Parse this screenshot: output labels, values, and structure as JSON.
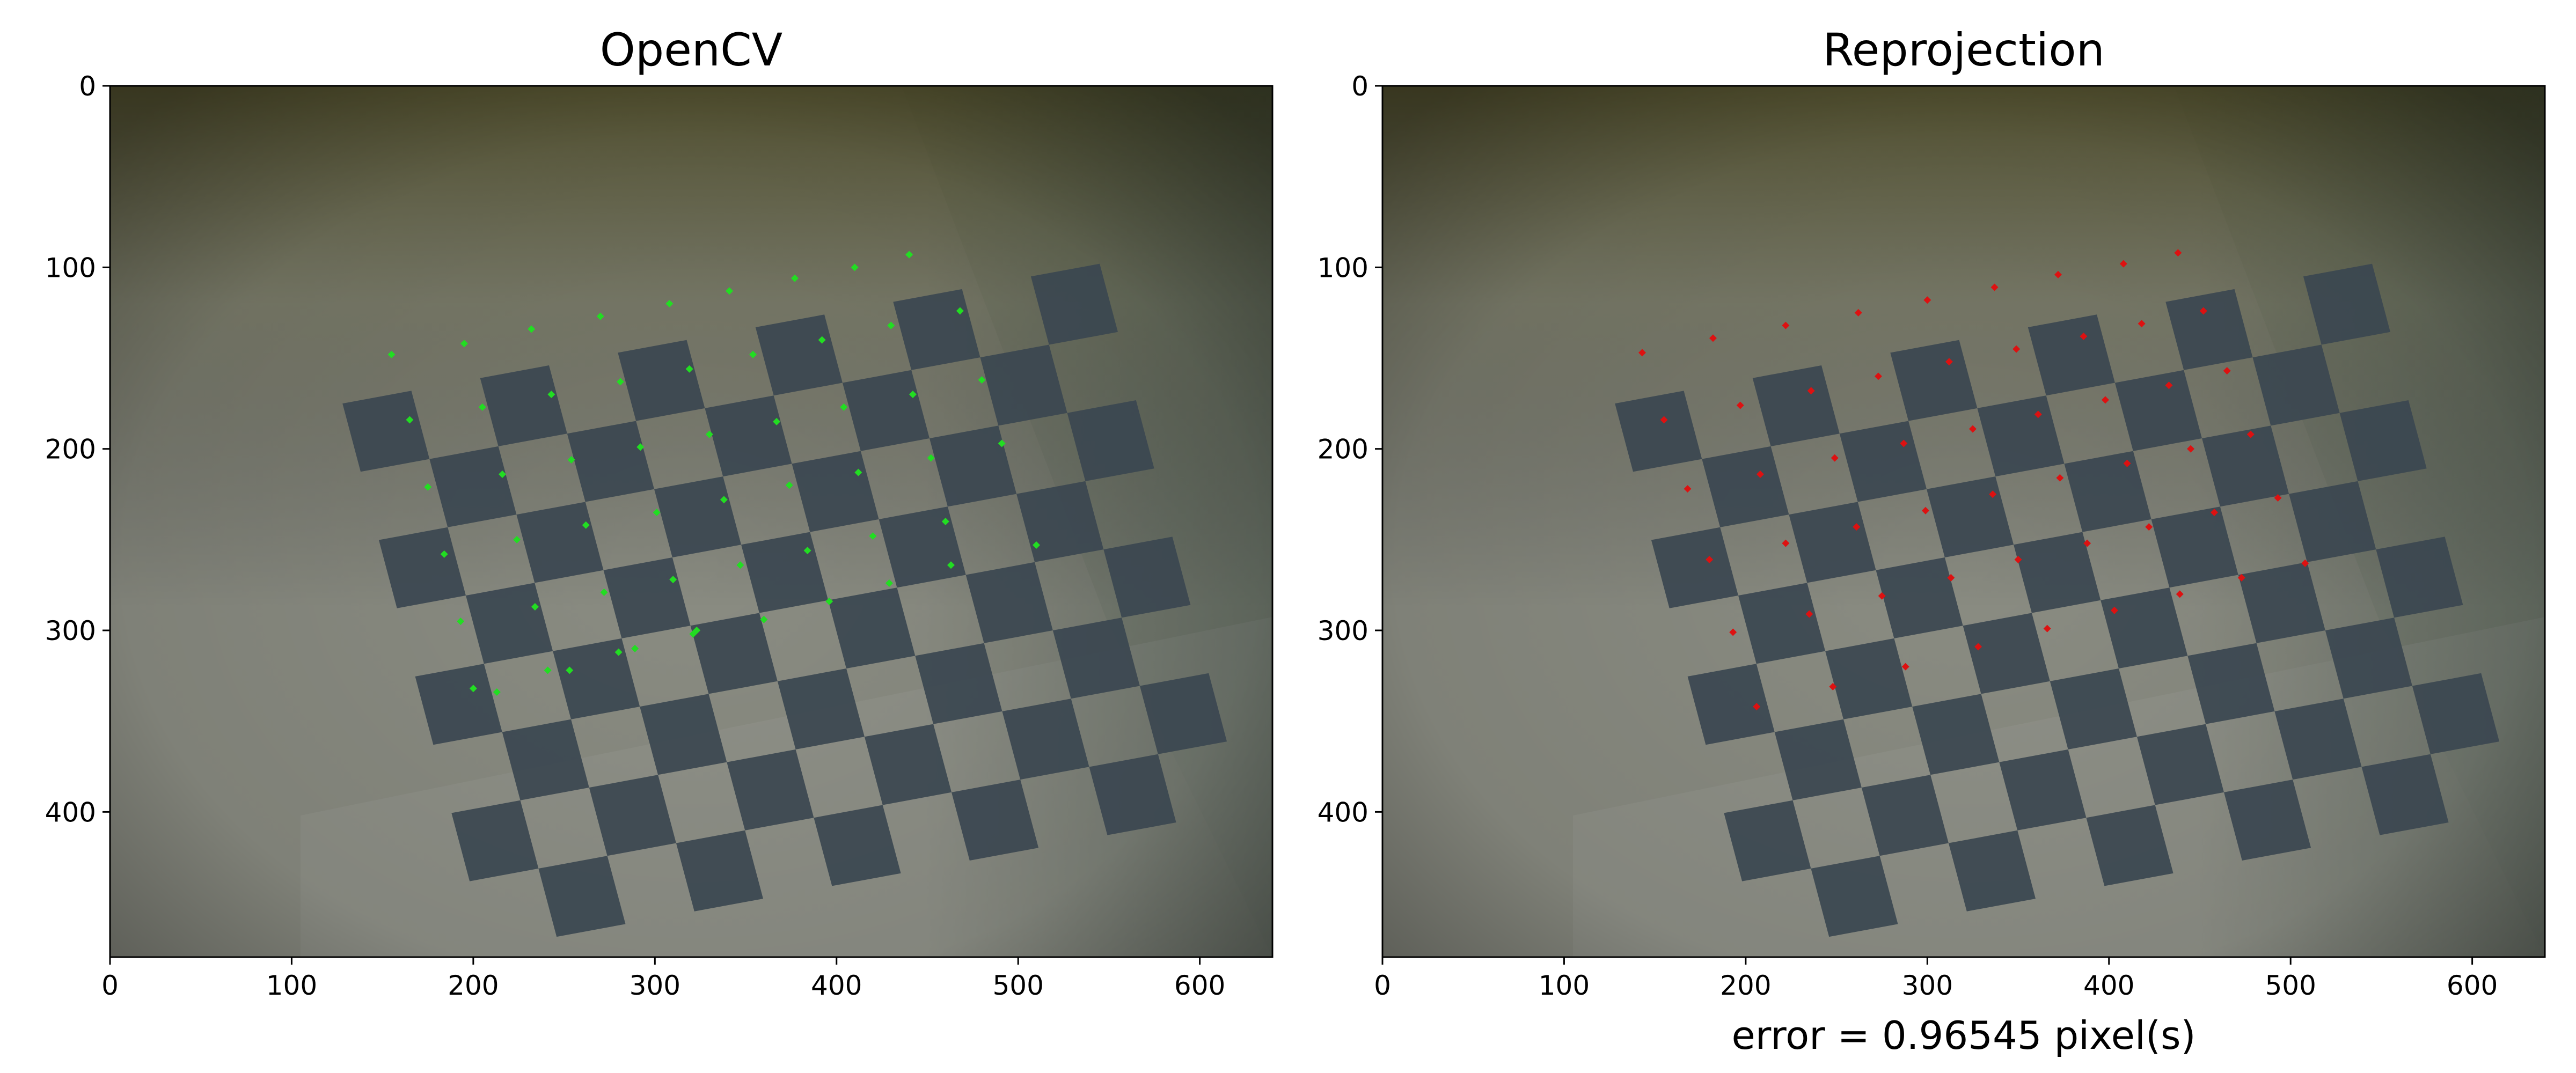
{
  "chart_data": [
    {
      "type": "scatter",
      "title": "OpenCV",
      "xlabel": "",
      "ylabel": "",
      "xlim": [
        0,
        640
      ],
      "ylim": [
        480,
        0
      ],
      "y_inverted": true,
      "x_ticks": [
        0,
        100,
        200,
        300,
        400,
        500,
        600
      ],
      "y_ticks": [
        0,
        100,
        200,
        300,
        400
      ],
      "grid": false,
      "marker_color": "#22dd22",
      "background": "camera image of a tilted checkerboard calibration target on a desk",
      "series": [
        {
          "x": [
            155,
            195,
            232,
            270,
            308,
            341,
            377,
            410,
            440,
            165,
            205,
            243,
            281,
            319,
            354,
            392,
            430,
            468,
            175,
            216,
            254,
            292,
            330,
            367,
            404,
            442,
            480,
            184,
            224,
            262,
            301,
            338,
            374,
            412,
            452,
            491,
            193,
            234,
            272,
            310,
            347,
            384,
            420,
            460,
            510,
            200,
            241,
            280,
            321,
            360,
            396,
            429,
            463,
            213,
            253,
            289,
            323
          ],
          "y": [
            148,
            142,
            134,
            127,
            120,
            113,
            106,
            100,
            93,
            184,
            177,
            170,
            163,
            156,
            148,
            140,
            132,
            124,
            221,
            214,
            206,
            199,
            192,
            185,
            177,
            170,
            162,
            258,
            250,
            242,
            235,
            228,
            220,
            213,
            205,
            197,
            295,
            287,
            279,
            272,
            264,
            256,
            248,
            240,
            253,
            332,
            322,
            312,
            302,
            294,
            284,
            274,
            264,
            334,
            322,
            310,
            300
          ],
          "size": 2.5
        }
      ]
    },
    {
      "type": "scatter",
      "title": "Reprojection",
      "xlabel": "",
      "ylabel": "",
      "xlim": [
        0,
        640
      ],
      "ylim": [
        480,
        0
      ],
      "y_inverted": true,
      "x_ticks": [
        0,
        100,
        200,
        300,
        400,
        500,
        600
      ],
      "y_ticks": [
        0,
        100,
        200,
        300,
        400
      ],
      "grid": false,
      "marker_color": "#dd1111",
      "annotation": "error = 0.96545 pixel(s)",
      "background": "camera image of a tilted checkerboard calibration target on a desk",
      "series": [
        {
          "x": [
            143,
            182,
            222,
            262,
            300,
            337,
            372,
            408,
            438,
            155,
            197,
            236,
            273,
            312,
            349,
            386,
            418,
            452,
            168,
            208,
            249,
            287,
            325,
            361,
            398,
            433,
            465,
            180,
            222,
            261,
            299,
            336,
            373,
            410,
            445,
            478,
            193,
            235,
            275,
            313,
            350,
            388,
            422,
            458,
            493,
            206,
            248,
            288,
            328,
            366,
            403,
            439,
            473,
            508
          ],
          "y": [
            147,
            139,
            132,
            125,
            118,
            111,
            104,
            98,
            92,
            184,
            176,
            168,
            160,
            152,
            145,
            138,
            131,
            124,
            222,
            214,
            205,
            197,
            189,
            181,
            173,
            165,
            157,
            261,
            252,
            243,
            234,
            225,
            216,
            208,
            200,
            192,
            301,
            291,
            281,
            271,
            261,
            252,
            243,
            235,
            227,
            342,
            331,
            320,
            309,
            299,
            289,
            280,
            271,
            263
          ],
          "size": 2.5
        }
      ]
    }
  ]
}
